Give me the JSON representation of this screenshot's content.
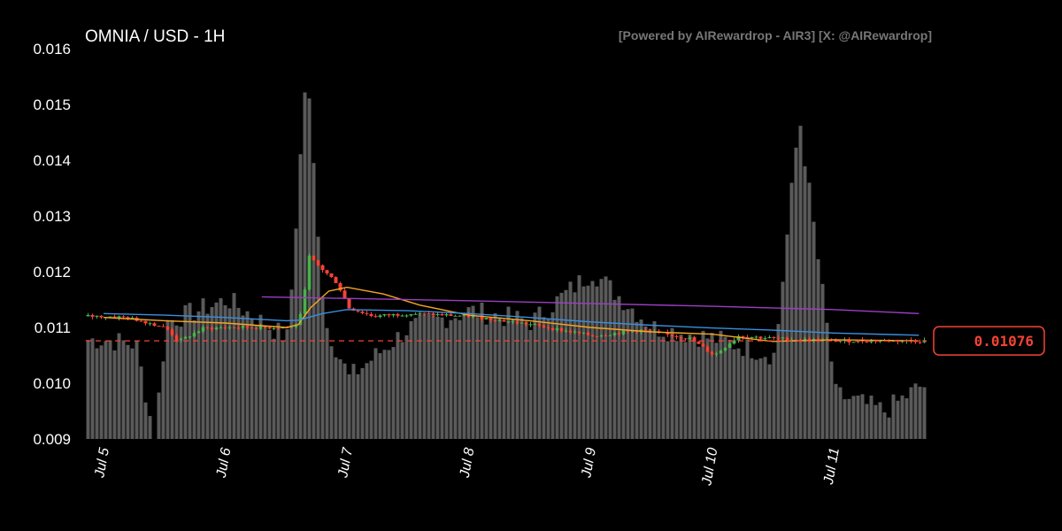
{
  "header": {
    "title": "OMNIA / USD - 1H",
    "credit": "[Powered by AIRewardrop - AIR3] [X: @AIRewardrop]"
  },
  "colors": {
    "background": "#000000",
    "up": "#4caf50",
    "down": "#f44336",
    "volume": "#5a5a5a",
    "ma_fast": "#f5a623",
    "ma_mid": "#3a8fe0",
    "ma_slow": "#9b3fc4",
    "last_price": "#f44336"
  },
  "chart_data": {
    "type": "candlestick",
    "title": "OMNIA / USD - 1H",
    "interval": "1H",
    "ylim": [
      0.009,
      0.016
    ],
    "yticks": [
      "0.009",
      "0.010",
      "0.011",
      "0.012",
      "0.013",
      "0.014",
      "0.015",
      "0.016"
    ],
    "xticks": [
      "Jul 5",
      "Jul 6",
      "Jul 7",
      "Jul 8",
      "Jul 9",
      "Jul 10",
      "Jul 11"
    ],
    "last_price": "0.01076",
    "last_price_value": 0.01076,
    "volume_overlay": true,
    "grid": false,
    "candle_keypoints": [
      {
        "t": 0.0,
        "c": 0.0112
      },
      {
        "t": 0.15,
        "c": 0.01118
      },
      {
        "t": 0.3,
        "c": 0.01112
      },
      {
        "t": 0.45,
        "c": 0.01102
      },
      {
        "t": 0.5,
        "c": 0.01098
      },
      {
        "t": 0.6,
        "c": 0.01075
      },
      {
        "t": 0.8,
        "c": 0.01098
      },
      {
        "t": 1.0,
        "c": 0.011
      },
      {
        "t": 1.2,
        "c": 0.011
      },
      {
        "t": 1.55,
        "c": 0.011
      },
      {
        "t": 1.62,
        "c": 0.0113
      },
      {
        "t": 1.66,
        "c": 0.0123
      },
      {
        "t": 1.7,
        "c": 0.0122
      },
      {
        "t": 1.8,
        "c": 0.012
      },
      {
        "t": 1.9,
        "c": 0.0118
      },
      {
        "t": 2.0,
        "c": 0.01135
      },
      {
        "t": 2.2,
        "c": 0.0112
      },
      {
        "t": 2.5,
        "c": 0.01125
      },
      {
        "t": 3.0,
        "c": 0.0112
      },
      {
        "t": 3.5,
        "c": 0.01105
      },
      {
        "t": 4.0,
        "c": 0.01085
      },
      {
        "t": 4.4,
        "c": 0.01095
      },
      {
        "t": 4.8,
        "c": 0.0108
      },
      {
        "t": 5.0,
        "c": 0.0105
      },
      {
        "t": 5.2,
        "c": 0.01085
      },
      {
        "t": 5.5,
        "c": 0.0108
      },
      {
        "t": 6.0,
        "c": 0.01076
      },
      {
        "t": 6.7,
        "c": 0.01076
      }
    ],
    "series": [
      {
        "name": "",
        "kind": "ma",
        "color": "#f5a623",
        "x": [
          0,
          0.5,
          1,
          1.5,
          1.6,
          1.7,
          1.85,
          2,
          2.3,
          2.6,
          3,
          3.5,
          4,
          4.5,
          5,
          5.5,
          6,
          6.7
        ],
        "y": [
          0.01118,
          0.01112,
          0.01108,
          0.011,
          0.01105,
          0.01135,
          0.01165,
          0.01172,
          0.0116,
          0.0114,
          0.01122,
          0.01112,
          0.011,
          0.01092,
          0.01088,
          0.01075,
          0.01078,
          0.01076
        ]
      },
      {
        "name": "",
        "kind": "ma",
        "color": "#3a8fe0",
        "x": [
          0,
          0.5,
          1,
          1.5,
          1.6,
          1.8,
          2,
          2.5,
          3,
          3.5,
          4,
          4.5,
          5,
          5.5,
          6,
          6.7
        ],
        "y": [
          0.01125,
          0.01122,
          0.01118,
          0.01112,
          0.01113,
          0.01125,
          0.01132,
          0.0113,
          0.01125,
          0.01118,
          0.0111,
          0.01104,
          0.01099,
          0.01095,
          0.0109,
          0.01086
        ]
      },
      {
        "name": "",
        "kind": "ma",
        "color": "#9b3fc4",
        "x": [
          1.3,
          2,
          3,
          4,
          5,
          6,
          6.7
        ],
        "y": [
          0.01155,
          0.01152,
          0.01148,
          0.01143,
          0.01138,
          0.01132,
          0.01125
        ]
      }
    ],
    "volume_keypoints": [
      {
        "t": 0.0,
        "v": 0.01078
      },
      {
        "t": 0.25,
        "v": 0.0107
      },
      {
        "t": 0.4,
        "v": 0.009
      },
      {
        "t": 0.5,
        "v": 0.0111
      },
      {
        "t": 1.0,
        "v": 0.0115
      },
      {
        "t": 1.5,
        "v": 0.0108
      },
      {
        "t": 1.65,
        "v": 0.0157
      },
      {
        "t": 1.8,
        "v": 0.0111
      },
      {
        "t": 2.0,
        "v": 0.0101
      },
      {
        "t": 2.5,
        "v": 0.011
      },
      {
        "t": 3.0,
        "v": 0.0113
      },
      {
        "t": 3.5,
        "v": 0.0111
      },
      {
        "t": 4.0,
        "v": 0.012
      },
      {
        "t": 4.5,
        "v": 0.011
      },
      {
        "t": 5.0,
        "v": 0.0108
      },
      {
        "t": 5.5,
        "v": 0.0105
      },
      {
        "t": 5.7,
        "v": 0.0148
      },
      {
        "t": 6.0,
        "v": 0.0098
      },
      {
        "t": 6.4,
        "v": 0.0095
      },
      {
        "t": 6.7,
        "v": 0.00995
      }
    ]
  }
}
